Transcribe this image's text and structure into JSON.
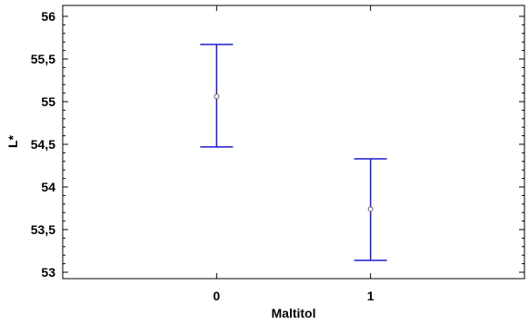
{
  "chart_data": {
    "type": "scatter",
    "xlabel": "Maltitol",
    "ylabel": "L*",
    "x_categories": [
      "0",
      "1"
    ],
    "xlim": [
      -1,
      2
    ],
    "ylim": [
      53,
      56
    ],
    "y_ticks": [
      "53",
      "53,5",
      "54",
      "54,5",
      "55",
      "55,5",
      "56"
    ],
    "points": [
      {
        "x": "0",
        "mean": 55.06,
        "lower": 54.47,
        "upper": 55.67
      },
      {
        "x": "1",
        "mean": 53.74,
        "lower": 53.14,
        "upper": 54.33
      }
    ],
    "grid": false,
    "colors": {
      "error_bar": "#1a1acc",
      "marker": "#606060"
    }
  }
}
